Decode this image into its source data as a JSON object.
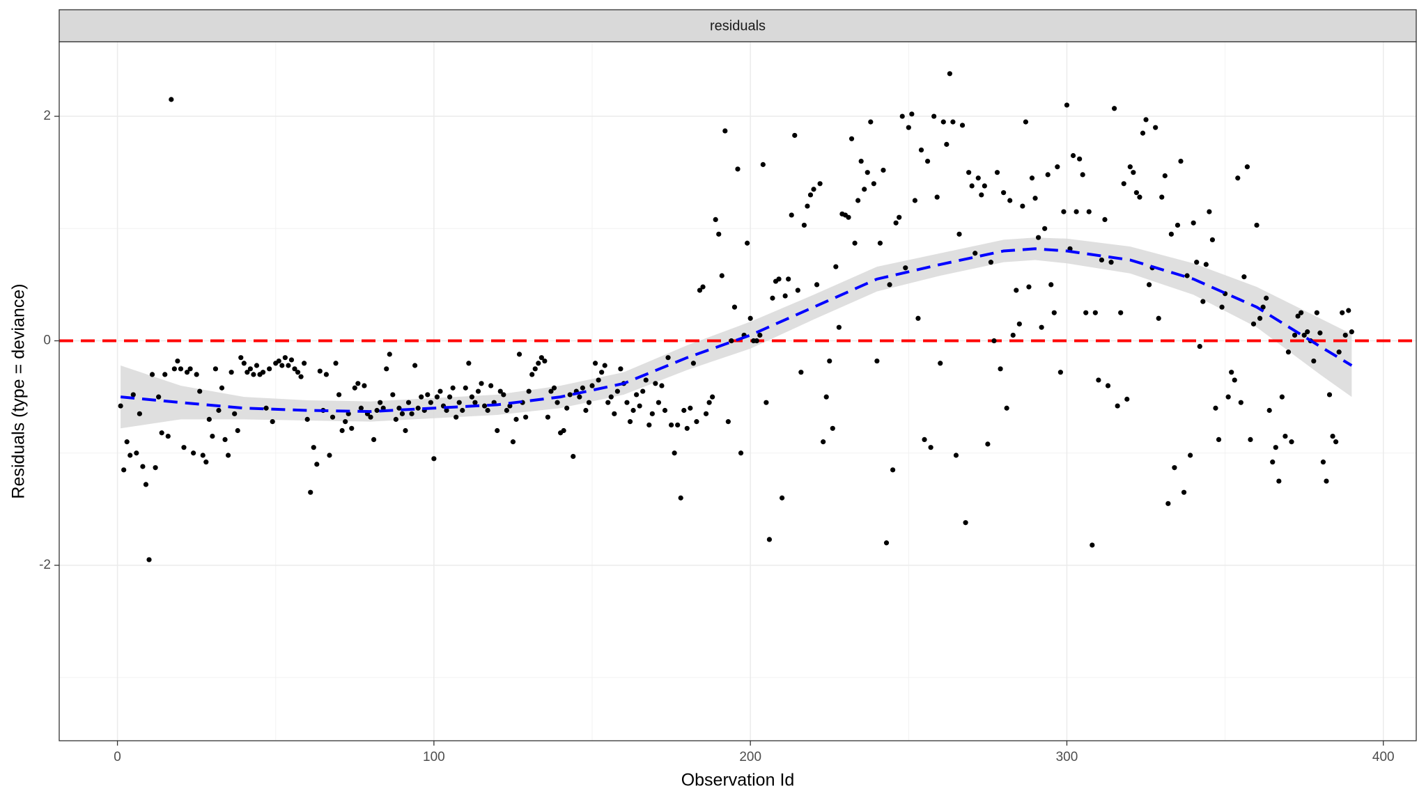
{
  "chart_data": {
    "type": "scatter",
    "strip": "residuals",
    "xlabel": "Observation Id",
    "ylabel": "Residuals (type = deviance)",
    "xlim": [
      -18.4,
      410.4
    ],
    "ylim": [
      -3.563,
      2.664
    ],
    "xticks": [
      0,
      100,
      200,
      300,
      400
    ],
    "yticks": [
      -2,
      0,
      2
    ],
    "grid": true,
    "point_color": "#000000",
    "hline": 0,
    "hline_color": "#ff0000",
    "x": [
      1,
      2,
      3,
      4,
      5,
      6,
      7,
      8,
      9,
      10,
      11,
      12,
      13,
      14,
      15,
      16,
      17,
      18,
      19,
      20,
      21,
      22,
      23,
      24,
      25,
      26,
      27,
      28,
      29,
      30,
      31,
      32,
      33,
      34,
      35,
      36,
      37,
      38,
      39,
      40,
      41,
      42,
      43,
      44,
      45,
      46,
      47,
      48,
      49,
      50,
      51,
      52,
      53,
      54,
      55,
      56,
      57,
      58,
      59,
      60,
      61,
      62,
      63,
      64,
      65,
      66,
      67,
      68,
      69,
      70,
      71,
      72,
      73,
      74,
      75,
      76,
      77,
      78,
      79,
      80,
      81,
      82,
      83,
      84,
      85,
      86,
      87,
      88,
      89,
      90,
      91,
      92,
      93,
      94,
      95,
      96,
      97,
      98,
      99,
      100,
      101,
      102,
      103,
      104,
      105,
      106,
      107,
      108,
      109,
      110,
      111,
      112,
      113,
      114,
      115,
      116,
      117,
      118,
      119,
      120,
      121,
      122,
      123,
      124,
      125,
      126,
      127,
      128,
      129,
      130,
      131,
      132,
      133,
      134,
      135,
      136,
      137,
      138,
      139,
      140,
      141,
      142,
      143,
      144,
      145,
      146,
      147,
      148,
      149,
      150,
      151,
      152,
      153,
      154,
      155,
      156,
      157,
      158,
      159,
      160,
      161,
      162,
      163,
      164,
      165,
      166,
      167,
      168,
      169,
      170,
      171,
      172,
      173,
      174,
      175,
      176,
      177,
      178,
      179,
      180,
      181,
      182,
      183,
      184,
      185,
      186,
      187,
      188,
      189,
      190,
      191,
      192,
      193,
      194,
      195,
      196,
      197,
      198,
      199,
      200,
      201,
      202,
      203,
      204,
      205,
      206,
      207,
      208,
      209,
      210,
      211,
      212,
      213,
      214,
      215,
      216,
      217,
      218,
      219,
      220,
      221,
      222,
      223,
      224,
      225,
      226,
      227,
      228,
      229,
      230,
      231,
      232,
      233,
      234,
      235,
      236,
      237,
      238,
      239,
      240,
      241,
      242,
      243,
      244,
      245,
      246,
      247,
      248,
      249,
      250,
      251,
      252,
      253,
      254,
      255,
      256,
      257,
      258,
      259,
      260,
      261,
      262,
      263,
      264,
      265,
      266,
      267,
      268,
      269,
      270,
      271,
      272,
      273,
      274,
      275,
      276,
      277,
      278,
      279,
      280,
      281,
      282,
      283,
      284,
      285,
      286,
      287,
      288,
      289,
      290,
      291,
      292,
      293,
      294,
      295,
      296,
      297,
      298,
      299,
      300,
      301,
      302,
      303,
      304,
      305,
      306,
      307,
      308,
      309,
      310,
      311,
      312,
      313,
      314,
      315,
      316,
      317,
      318,
      319,
      320,
      321,
      322,
      323,
      324,
      325,
      326,
      327,
      328,
      329,
      330,
      331,
      332,
      333,
      334,
      335,
      336,
      337,
      338,
      339,
      340,
      341,
      342,
      343,
      344,
      345,
      346,
      347,
      348,
      349,
      350,
      351,
      352,
      353,
      354,
      355,
      356,
      357,
      358,
      359,
      360,
      361,
      362,
      363,
      364,
      365,
      366,
      367,
      368,
      369,
      370,
      371,
      372,
      373,
      374,
      375,
      376,
      377,
      378,
      379,
      380,
      381,
      382,
      383,
      384,
      385,
      386,
      387,
      388,
      389,
      390
    ],
    "values": [
      -0.58,
      -1.15,
      -0.9,
      -1.02,
      -0.48,
      -1.0,
      -0.65,
      -1.12,
      -1.28,
      -1.95,
      -0.3,
      -1.13,
      -0.5,
      -0.82,
      -0.3,
      -0.85,
      2.15,
      -0.25,
      -0.18,
      -0.25,
      -0.95,
      -0.28,
      -0.25,
      -1.0,
      -0.3,
      -0.45,
      -1.02,
      -1.08,
      -0.7,
      -0.85,
      -0.25,
      -0.62,
      -0.42,
      -0.88,
      -1.02,
      -0.28,
      -0.65,
      -0.8,
      -0.15,
      -0.2,
      -0.28,
      -0.25,
      -0.3,
      -0.22,
      -0.3,
      -0.28,
      -0.6,
      -0.25,
      -0.72,
      -0.2,
      -0.18,
      -0.22,
      -0.15,
      -0.22,
      -0.17,
      -0.25,
      -0.28,
      -0.32,
      -0.2,
      -0.7,
      -1.35,
      -0.95,
      -1.1,
      -0.27,
      -0.62,
      -0.3,
      -1.02,
      -0.68,
      -0.2,
      -0.48,
      -0.8,
      -0.72,
      -0.65,
      -0.78,
      -0.42,
      -0.38,
      -0.6,
      -0.4,
      -0.65,
      -0.68,
      -0.88,
      -0.62,
      -0.55,
      -0.6,
      -0.25,
      -0.12,
      -0.48,
      -0.7,
      -0.6,
      -0.65,
      -0.8,
      -0.55,
      -0.65,
      -0.22,
      -0.6,
      -0.5,
      -0.62,
      -0.48,
      -0.55,
      -1.05,
      -0.5,
      -0.45,
      -0.58,
      -0.62,
      -0.5,
      -0.42,
      -0.68,
      -0.55,
      -0.62,
      -0.42,
      -0.2,
      -0.5,
      -0.55,
      -0.45,
      -0.38,
      -0.58,
      -0.62,
      -0.4,
      -0.55,
      -0.8,
      -0.45,
      -0.48,
      -0.62,
      -0.58,
      -0.9,
      -0.7,
      -0.12,
      -0.55,
      -0.68,
      -0.45,
      -0.3,
      -0.25,
      -0.2,
      -0.15,
      -0.18,
      -0.68,
      -0.45,
      -0.42,
      -0.55,
      -0.82,
      -0.8,
      -0.6,
      -0.48,
      -1.03,
      -0.45,
      -0.5,
      -0.42,
      -0.62,
      -0.55,
      -0.4,
      -0.2,
      -0.35,
      -0.28,
      -0.22,
      -0.55,
      -0.5,
      -0.65,
      -0.45,
      -0.25,
      -0.38,
      -0.55,
      -0.72,
      -0.62,
      -0.48,
      -0.58,
      -0.45,
      -0.35,
      -0.75,
      -0.65,
      -0.38,
      -0.55,
      -0.4,
      -0.62,
      -0.15,
      -0.75,
      -1.0,
      -0.75,
      -1.4,
      -0.62,
      -0.78,
      -0.6,
      -0.2,
      -0.72,
      0.45,
      0.48,
      -0.65,
      -0.55,
      -0.5,
      1.08,
      0.95,
      0.58,
      1.87,
      -0.72,
      0.0,
      0.3,
      1.53,
      -1.0,
      0.05,
      0.87,
      0.2,
      0.0,
      0.0,
      0.05,
      1.57,
      -0.55,
      -1.77,
      0.38,
      0.53,
      0.55,
      -1.4,
      0.4,
      0.55,
      1.12,
      1.83,
      0.45,
      -0.28,
      1.03,
      1.2,
      1.3,
      1.35,
      0.5,
      1.4,
      -0.9,
      -0.5,
      -0.18,
      -0.78,
      0.66,
      0.12,
      1.13,
      1.12,
      1.1,
      1.8,
      0.87,
      1.25,
      1.6,
      1.35,
      1.5,
      1.95,
      1.4,
      -0.18,
      0.87,
      1.52,
      -1.8,
      0.5,
      -1.15,
      1.05,
      1.1,
      2.0,
      0.65,
      1.9,
      2.02,
      1.25,
      0.2,
      1.7,
      -0.88,
      1.6,
      -0.95,
      2.0,
      1.28,
      -0.2,
      1.95,
      1.75,
      2.38,
      1.95,
      -1.02,
      0.95,
      1.92,
      -1.62,
      1.5,
      1.38,
      0.78,
      1.45,
      1.3,
      1.38,
      -0.92,
      0.7,
      0.0,
      1.5,
      -0.25,
      1.32,
      -0.6,
      1.25,
      0.05,
      0.45,
      0.15,
      1.2,
      1.95,
      0.48,
      1.45,
      1.27,
      0.92,
      0.12,
      1.0,
      1.48,
      0.5,
      0.25,
      1.55,
      -0.28,
      1.15,
      2.1,
      0.82,
      1.65,
      1.15,
      1.62,
      1.48,
      0.25,
      1.15,
      -1.82,
      0.25,
      -0.35,
      0.72,
      1.08,
      -0.4,
      0.7,
      2.07,
      -0.58,
      0.25,
      1.4,
      -0.52,
      1.55,
      1.5,
      1.32,
      1.28,
      1.85,
      1.97,
      0.5,
      0.65,
      1.9,
      0.2,
      1.28,
      1.47,
      -1.45,
      0.95,
      -1.13,
      1.03,
      1.6,
      -1.35,
      0.58,
      -1.02,
      1.05,
      0.7,
      -0.05,
      0.35,
      0.68,
      1.15,
      0.9,
      -0.6,
      -0.88,
      0.3,
      0.42,
      -0.5,
      -0.28,
      -0.35,
      1.45,
      -0.55,
      0.57,
      1.55,
      -0.88,
      0.15,
      1.03,
      0.2,
      0.3,
      0.38,
      -0.62,
      -1.08,
      -0.95,
      -1.25,
      -0.5,
      -0.85,
      -0.1,
      -0.9,
      0.05,
      0.22,
      0.25,
      0.05,
      0.08,
      0.0,
      -0.18,
      0.25,
      0.07,
      -1.08,
      -1.25,
      -0.48,
      -0.85,
      -0.9,
      -0.1,
      0.25,
      0.05,
      0.27,
      0.08
    ],
    "smooth": {
      "color": "#0000ff",
      "band_color": "#d9d9d9",
      "x": [
        1,
        20,
        40,
        60,
        80,
        100,
        120,
        140,
        160,
        180,
        200,
        220,
        240,
        260,
        280,
        290,
        300,
        320,
        340,
        360,
        380,
        390
      ],
      "values": [
        -0.5,
        -0.55,
        -0.6,
        -0.62,
        -0.63,
        -0.6,
        -0.57,
        -0.5,
        -0.38,
        -0.15,
        0.05,
        0.3,
        0.55,
        0.68,
        0.8,
        0.82,
        0.8,
        0.72,
        0.55,
        0.3,
        -0.05,
        -0.22
      ],
      "lower": [
        -0.78,
        -0.7,
        -0.7,
        -0.71,
        -0.72,
        -0.69,
        -0.66,
        -0.6,
        -0.48,
        -0.26,
        -0.07,
        0.19,
        0.44,
        0.58,
        0.7,
        0.72,
        0.69,
        0.6,
        0.41,
        0.12,
        -0.3,
        -0.5
      ],
      "upper": [
        -0.22,
        -0.4,
        -0.5,
        -0.53,
        -0.54,
        -0.51,
        -0.48,
        -0.4,
        -0.28,
        -0.04,
        0.17,
        0.41,
        0.66,
        0.78,
        0.9,
        0.92,
        0.91,
        0.84,
        0.69,
        0.48,
        0.2,
        0.06
      ]
    }
  }
}
